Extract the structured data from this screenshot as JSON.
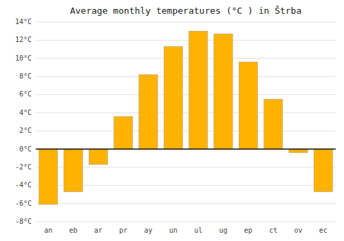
{
  "chart_data": {
    "type": "bar",
    "title": "Average monthly temperatures (°C ) in Štrba",
    "categories": [
      "an",
      "eb",
      "ar",
      "pr",
      "ay",
      "un",
      "ul",
      "ug",
      "ep",
      "ct",
      "ov",
      "ec"
    ],
    "values": [
      -6.1,
      -4.7,
      -1.7,
      3.6,
      8.2,
      11.3,
      13.0,
      12.7,
      9.6,
      5.5,
      -0.4,
      -4.7
    ],
    "color": "#FFB300",
    "ylim": [
      -8,
      14
    ],
    "yticks": [
      {
        "value": -8,
        "label": "-8°C"
      },
      {
        "value": -6,
        "label": "-6°C"
      },
      {
        "value": -4,
        "label": "-4°C"
      },
      {
        "value": -2,
        "label": "-2°C"
      },
      {
        "value": 0,
        "label": "0°C"
      },
      {
        "value": 2,
        "label": "2°C"
      },
      {
        "value": 4,
        "label": "4°C"
      },
      {
        "value": 6,
        "label": "6°C"
      },
      {
        "value": 8,
        "label": "8°C"
      },
      {
        "value": 10,
        "label": "10°C"
      },
      {
        "value": 12,
        "label": "12°C"
      },
      {
        "value": 14,
        "label": "14°C"
      }
    ],
    "grid": true
  }
}
